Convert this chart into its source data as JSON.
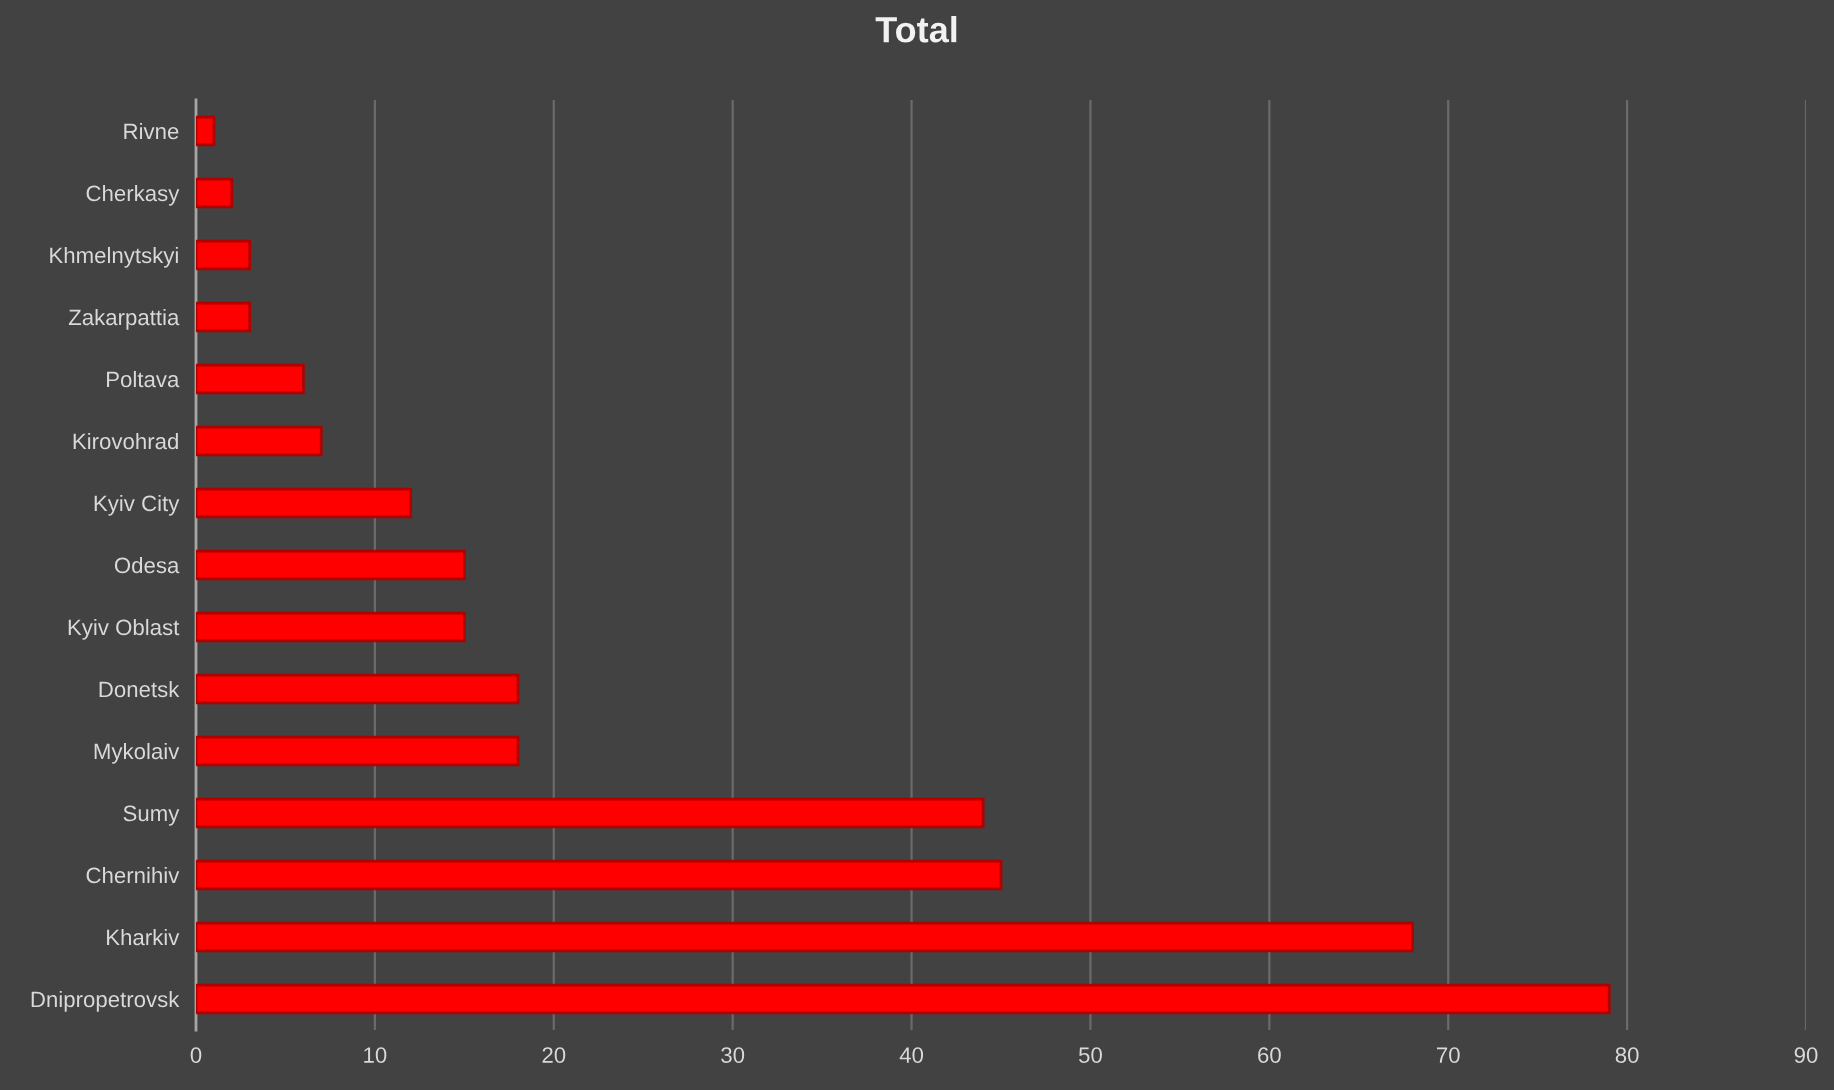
{
  "chart_data": {
    "type": "bar",
    "orientation": "horizontal",
    "title": "Total",
    "categories": [
      "Rivne",
      "Cherkasy",
      "Khmelnytskyi",
      "Zakarpattia",
      "Poltava",
      "Kirovohrad",
      "Kyiv City",
      "Odesa",
      "Kyiv Oblast",
      "Donetsk",
      "Mykolaiv",
      "Sumy",
      "Chernihiv",
      "Kharkiv",
      "Dnipropetrovsk"
    ],
    "values": [
      1,
      2,
      3,
      3,
      6,
      7,
      12,
      15,
      15,
      18,
      18,
      44,
      45,
      68,
      79
    ],
    "color": "#ff0000",
    "xlim": [
      0,
      90
    ],
    "xticks": [
      0,
      10,
      20,
      30,
      40,
      50,
      60,
      70,
      80,
      90
    ],
    "grid": "x"
  }
}
